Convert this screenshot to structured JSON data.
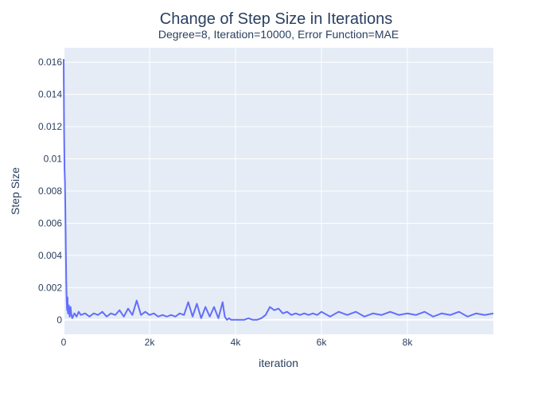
{
  "chart_data": {
    "type": "line",
    "title": "Change of Step Size in Iterations",
    "subtitle": "Degree=8, Iteration=10000, Error Function=MAE",
    "xlabel": "iteration",
    "ylabel": "Step Size",
    "xlim": [
      0,
      10000
    ],
    "ylim": [
      -0.0009,
      0.0169
    ],
    "x_ticks": [
      0,
      2000,
      4000,
      6000,
      8000
    ],
    "x_tick_labels": [
      "0",
      "2k",
      "4k",
      "6k",
      "8k"
    ],
    "y_ticks": [
      0,
      0.002,
      0.004,
      0.006,
      0.008,
      0.01,
      0.012,
      0.014,
      0.016
    ],
    "y_tick_labels": [
      "0",
      "0.002",
      "0.004",
      "0.006",
      "0.008",
      "0.01",
      "0.012",
      "0.014",
      "0.016"
    ],
    "grid": true,
    "colors": {
      "line": "#636efa",
      "plot_bg": "#e5ecf6",
      "grid": "#ffffff",
      "text": "#2a3f5f"
    },
    "series": [
      {
        "x": [
          0,
          10,
          20,
          30,
          40,
          50,
          60,
          70,
          80,
          90,
          100,
          120,
          140,
          160,
          180,
          200,
          250,
          300,
          350,
          400,
          500,
          600,
          700,
          800,
          900,
          1000,
          1100,
          1200,
          1300,
          1400,
          1500,
          1600,
          1700,
          1800,
          1900,
          2000,
          2100,
          2200,
          2300,
          2400,
          2500,
          2600,
          2700,
          2800,
          2900,
          3000,
          3100,
          3200,
          3300,
          3400,
          3500,
          3600,
          3700,
          3750,
          3800,
          3850,
          3900,
          4000,
          4100,
          4200,
          4300,
          4400,
          4500,
          4600,
          4700,
          4800,
          4900,
          5000,
          5100,
          5200,
          5300,
          5400,
          5500,
          5600,
          5700,
          5800,
          5900,
          6000,
          6200,
          6400,
          6600,
          6800,
          7000,
          7200,
          7400,
          7600,
          7800,
          8000,
          8200,
          8400,
          8600,
          8800,
          9000,
          9200,
          9400,
          9600,
          9800,
          10000
        ],
        "y": [
          0.0162,
          0.0118,
          0.0094,
          0.0086,
          0.0068,
          0.0045,
          0.0025,
          0.0012,
          0.0006,
          0.0014,
          0.0004,
          0.0009,
          0.0002,
          0.0008,
          0.0003,
          0.0001,
          0.0004,
          0.0002,
          0.0005,
          0.0003,
          0.0004,
          0.0002,
          0.0004,
          0.0003,
          0.0005,
          0.0002,
          0.0004,
          0.0003,
          0.0006,
          0.0002,
          0.0007,
          0.0003,
          0.0012,
          0.0003,
          0.0005,
          0.0003,
          0.0004,
          0.0002,
          0.0003,
          0.0002,
          0.0003,
          0.0002,
          0.0004,
          0.0003,
          0.0011,
          0.0002,
          0.001,
          0.0001,
          0.0008,
          0.0002,
          0.0008,
          0.0001,
          0.0011,
          0.0002,
          0.0,
          0.0001,
          0.0,
          0.0,
          0.0,
          0.0,
          0.0001,
          0.0,
          0.0,
          0.0001,
          0.0003,
          0.0008,
          0.0006,
          0.0007,
          0.0004,
          0.0005,
          0.0003,
          0.0004,
          0.0003,
          0.0004,
          0.0003,
          0.0004,
          0.0003,
          0.0005,
          0.0002,
          0.0005,
          0.0003,
          0.0005,
          0.0002,
          0.0004,
          0.0003,
          0.0005,
          0.0003,
          0.0004,
          0.0003,
          0.0005,
          0.0002,
          0.0004,
          0.0003,
          0.0005,
          0.0002,
          0.0004,
          0.0003,
          0.0004
        ]
      }
    ]
  }
}
